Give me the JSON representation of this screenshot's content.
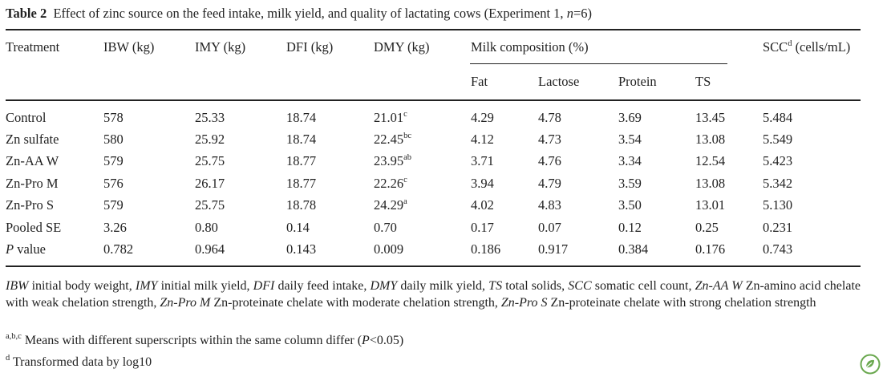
{
  "caption": {
    "label": "Table 2",
    "text_before_n": "Effect of zinc source on the feed intake, milk yield, and quality of lactating cows (Experiment 1, ",
    "n_symbol": "n",
    "text_after_n": "=6)"
  },
  "headers": {
    "treatment": "Treatment",
    "ibw": "IBW (kg)",
    "imy": "IMY (kg)",
    "dfi": "DFI (kg)",
    "dmy": "DMY (kg)",
    "milk_composition": "Milk composition (%)",
    "fat": "Fat",
    "lactose": "Lactose",
    "protein": "Protein",
    "ts": "TS",
    "scc_main": "SCC",
    "scc_sup": "d",
    "scc_unit": "(cells/mL)"
  },
  "rows": [
    {
      "treatment": "Control",
      "ibw": "578",
      "imy": "25.33",
      "dfi": "18.74",
      "dmy": "21.01",
      "dmy_sup": "c",
      "fat": "4.29",
      "lactose": "4.78",
      "protein": "3.69",
      "ts": "13.45",
      "scc": "5.484"
    },
    {
      "treatment": "Zn sulfate",
      "ibw": "580",
      "imy": "25.92",
      "dfi": "18.74",
      "dmy": "22.45",
      "dmy_sup": "bc",
      "fat": "4.12",
      "lactose": "4.73",
      "protein": "3.54",
      "ts": "13.08",
      "scc": "5.549"
    },
    {
      "treatment": "Zn-AA W",
      "ibw": "579",
      "imy": "25.75",
      "dfi": "18.77",
      "dmy": "23.95",
      "dmy_sup": "ab",
      "fat": "3.71",
      "lactose": "4.76",
      "protein": "3.34",
      "ts": "12.54",
      "scc": "5.423"
    },
    {
      "treatment": "Zn-Pro M",
      "ibw": "576",
      "imy": "26.17",
      "dfi": "18.77",
      "dmy": "22.26",
      "dmy_sup": "c",
      "fat": "3.94",
      "lactose": "4.79",
      "protein": "3.59",
      "ts": "13.08",
      "scc": "5.342"
    },
    {
      "treatment": "Zn-Pro S",
      "ibw": "579",
      "imy": "25.75",
      "dfi": "18.78",
      "dmy": "24.29",
      "dmy_sup": "a",
      "fat": "4.02",
      "lactose": "4.83",
      "protein": "3.50",
      "ts": "13.01",
      "scc": "5.130"
    },
    {
      "treatment": "Pooled SE",
      "ibw": "3.26",
      "imy": "0.80",
      "dfi": "0.14",
      "dmy": "0.70",
      "dmy_sup": "",
      "fat": "0.17",
      "lactose": "0.07",
      "protein": "0.12",
      "ts": "0.25",
      "scc": "0.231"
    },
    {
      "treatment": "value",
      "treatment_prefix_italic": "P",
      "ibw": "0.782",
      "imy": "0.964",
      "dfi": "0.143",
      "dmy": "0.009",
      "dmy_sup": "",
      "fat": "0.186",
      "lactose": "0.917",
      "protein": "0.384",
      "ts": "0.176",
      "scc": "0.743"
    }
  ],
  "footnotes": {
    "abbreviations": [
      {
        "abbr": "IBW",
        "def": "initial body weight,"
      },
      {
        "abbr": "IMY",
        "def": "initial milk yield,"
      },
      {
        "abbr": "DFI",
        "def": "daily feed intake,"
      },
      {
        "abbr": "DMY",
        "def": "daily milk yield,"
      },
      {
        "abbr": "TS",
        "def": "total solids,"
      },
      {
        "abbr": "SCC",
        "def": "somatic cell count,"
      },
      {
        "abbr": "Zn-AA W",
        "def": "Zn-amino acid chelate with weak chelation strength,"
      },
      {
        "abbr": "Zn-Pro M",
        "def": "Zn-proteinate chelate with moderate chelation strength,"
      },
      {
        "abbr": "Zn-Pro S",
        "def": "Zn-proteinate chelate with strong chelation strength"
      }
    ],
    "abc_sup": "a,b,c",
    "abc_text_before": "Means with different superscripts within the same column differ (",
    "abc_p": "P",
    "abc_text_after": "<0.05)",
    "d_sup": "d",
    "d_text": "Transformed data by log10"
  },
  "colors": {
    "text": "#222222",
    "badge": "#6aa84f"
  },
  "icons": {
    "badge": "leaf-badge-icon"
  }
}
